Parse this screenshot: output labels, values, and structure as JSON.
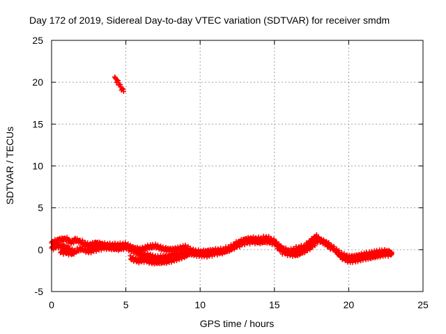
{
  "chart_data": {
    "type": "scatter",
    "title": "Day 172 of 2019, Sidereal Day-to-day VTEC variation (SDTVAR) for receiver smdm",
    "xlabel": "GPS time / hours",
    "ylabel": "SDTVAR / TECUs",
    "xlim": [
      0,
      25
    ],
    "ylim": [
      -5,
      25
    ],
    "xticks": [
      0,
      5,
      10,
      15,
      20,
      25
    ],
    "yticks": [
      -5,
      0,
      5,
      10,
      15,
      20,
      25
    ],
    "grid": true,
    "marker": "plus",
    "color": "#ff0000",
    "series": [
      {
        "name": "SDTVAR",
        "segments": [
          {
            "x": [
              4.25,
              4.4,
              4.55,
              4.7,
              4.85
            ],
            "y": [
              20.5,
              20.2,
              19.8,
              19.3,
              18.9
            ]
          },
          {
            "x": [
              0.0,
              0.5,
              1.0,
              1.3,
              1.6,
              2.0,
              2.5,
              3.0,
              3.5,
              4.0,
              4.5,
              5.0,
              5.5,
              6.0,
              6.5,
              7.0,
              7.5,
              8.0,
              8.5,
              9.0,
              9.5,
              10.0,
              10.5,
              11.0,
              11.5,
              12.0,
              12.5,
              13.0,
              13.5,
              14.0,
              14.5,
              15.0,
              15.5,
              16.0,
              16.5,
              17.0,
              17.5,
              17.8,
              18.2,
              18.6,
              19.0,
              19.5,
              20.0,
              20.5,
              21.0,
              21.5,
              22.0,
              22.5,
              22.9
            ],
            "y": [
              0.8,
              1.2,
              1.3,
              0.9,
              1.2,
              0.9,
              0.5,
              0.8,
              0.6,
              0.5,
              0.5,
              0.6,
              0.2,
              0.0,
              0.3,
              0.4,
              0.1,
              0.0,
              0.1,
              0.3,
              -0.2,
              -0.3,
              -0.2,
              -0.1,
              -0.1,
              0.2,
              0.8,
              1.2,
              1.3,
              1.2,
              1.4,
              1.0,
              0.2,
              -0.2,
              0.1,
              0.3,
              1.1,
              1.6,
              1.0,
              0.5,
              0.1,
              -0.6,
              -0.9,
              -0.8,
              -0.6,
              -0.5,
              -0.3,
              -0.2,
              -0.3
            ]
          },
          {
            "x": [
              0.0,
              0.5,
              1.0,
              1.5,
              2.0,
              2.5,
              3.0,
              3.5,
              4.0,
              4.5,
              5.0,
              5.5,
              6.0,
              6.5,
              7.0,
              7.5,
              8.0,
              8.5,
              9.0,
              9.5,
              10.0,
              10.5,
              11.0,
              11.5,
              12.0,
              12.5,
              13.0,
              13.5,
              14.0,
              14.5,
              15.0,
              15.5,
              16.0,
              16.5,
              17.0,
              17.5,
              18.0,
              18.5,
              19.0,
              19.5,
              20.0,
              20.5,
              21.0,
              21.5,
              22.0,
              22.5,
              22.9
            ],
            "y": [
              0.2,
              0.5,
              0.3,
              -0.3,
              0.1,
              -0.2,
              0.1,
              0.3,
              0.2,
              0.1,
              0.3,
              -0.1,
              -0.6,
              -0.7,
              -1.0,
              -0.9,
              -0.8,
              -0.6,
              -0.4,
              -0.5,
              -0.6,
              -0.6,
              -0.4,
              -0.3,
              0.0,
              0.5,
              0.9,
              1.0,
              0.9,
              1.0,
              0.8,
              -0.2,
              -0.5,
              -0.6,
              -0.2,
              0.4,
              1.2,
              0.8,
              0.1,
              -0.9,
              -1.3,
              -1.2,
              -1.0,
              -0.9,
              -0.7,
              -0.5,
              -0.5
            ]
          },
          {
            "x": [
              5.3,
              5.8,
              6.3,
              6.8,
              7.3,
              7.8,
              8.3,
              8.8,
              9.2
            ],
            "y": [
              -1.0,
              -1.3,
              -1.2,
              -1.5,
              -1.5,
              -1.4,
              -1.1,
              -0.8,
              -0.6
            ]
          },
          {
            "x": [
              0.6,
              1.0,
              1.5
            ],
            "y": [
              -0.2,
              -0.3,
              -0.5
            ]
          }
        ]
      }
    ]
  }
}
